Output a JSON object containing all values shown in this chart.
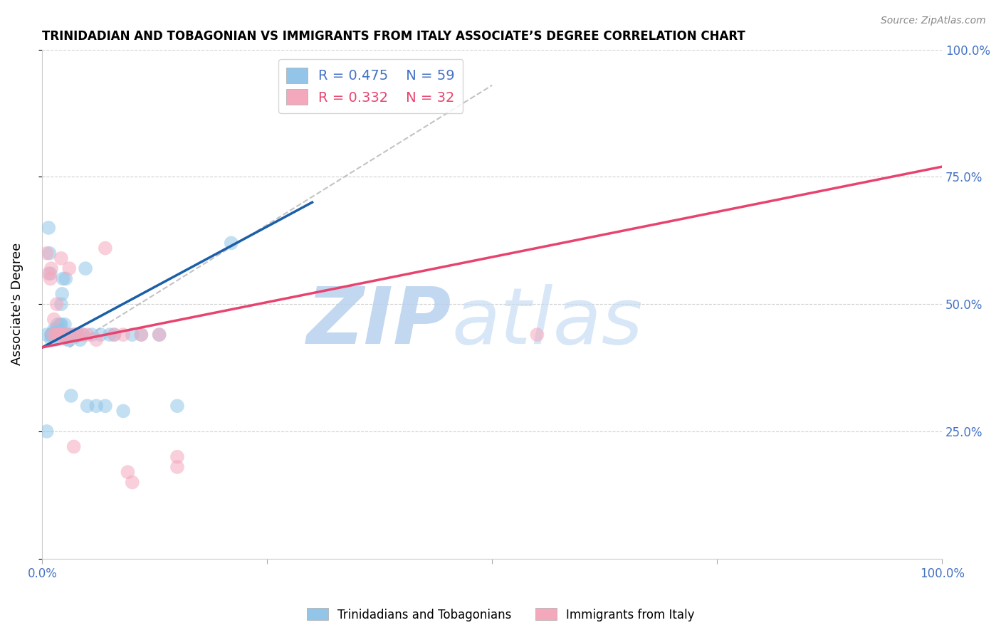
{
  "title": "TRINIDADIAN AND TOBAGONIAN VS IMMIGRANTS FROM ITALY ASSOCIATE’S DEGREE CORRELATION CHART",
  "source_text": "Source: ZipAtlas.com",
  "ylabel": "Associate's Degree",
  "r_blue": 0.475,
  "n_blue": 59,
  "r_pink": 0.332,
  "n_pink": 32,
  "blue_scatter_color": "#92c5e8",
  "pink_scatter_color": "#f4a8bc",
  "blue_line_color": "#1a5fa8",
  "pink_line_color": "#e8436e",
  "axis_label_color": "#4472c4",
  "watermark_color": "#cfe0f5",
  "blue_line_x0": 0.0,
  "blue_line_y0": 0.415,
  "blue_line_x1": 0.3,
  "blue_line_y1": 0.7,
  "pink_line_x0": 0.0,
  "pink_line_y0": 0.415,
  "pink_line_x1": 1.0,
  "pink_line_y1": 0.77,
  "dash_line_x0": 0.03,
  "dash_line_y0": 0.415,
  "dash_line_x1": 0.5,
  "dash_line_y1": 0.93,
  "blue_points_x": [
    0.005,
    0.007,
    0.008,
    0.009,
    0.01,
    0.01,
    0.01,
    0.011,
    0.012,
    0.013,
    0.013,
    0.014,
    0.015,
    0.015,
    0.015,
    0.016,
    0.017,
    0.017,
    0.018,
    0.018,
    0.019,
    0.019,
    0.02,
    0.02,
    0.021,
    0.021,
    0.022,
    0.022,
    0.023,
    0.023,
    0.024,
    0.025,
    0.025,
    0.026,
    0.027,
    0.028,
    0.03,
    0.03,
    0.032,
    0.035,
    0.038,
    0.04,
    0.042,
    0.045,
    0.048,
    0.05,
    0.055,
    0.06,
    0.065,
    0.07,
    0.075,
    0.08,
    0.09,
    0.1,
    0.11,
    0.13,
    0.15,
    0.21,
    0.005
  ],
  "blue_points_y": [
    0.44,
    0.65,
    0.6,
    0.56,
    0.44,
    0.44,
    0.43,
    0.44,
    0.44,
    0.44,
    0.45,
    0.44,
    0.43,
    0.44,
    0.45,
    0.44,
    0.44,
    0.46,
    0.44,
    0.45,
    0.44,
    0.44,
    0.44,
    0.46,
    0.46,
    0.5,
    0.52,
    0.44,
    0.55,
    0.44,
    0.44,
    0.44,
    0.46,
    0.55,
    0.44,
    0.43,
    0.43,
    0.44,
    0.32,
    0.44,
    0.44,
    0.44,
    0.43,
    0.44,
    0.57,
    0.3,
    0.44,
    0.3,
    0.44,
    0.3,
    0.44,
    0.44,
    0.29,
    0.44,
    0.44,
    0.44,
    0.3,
    0.62,
    0.25
  ],
  "pink_points_x": [
    0.005,
    0.007,
    0.009,
    0.01,
    0.012,
    0.013,
    0.015,
    0.016,
    0.018,
    0.019,
    0.02,
    0.021,
    0.022,
    0.025,
    0.028,
    0.03,
    0.035,
    0.035,
    0.04,
    0.045,
    0.05,
    0.06,
    0.07,
    0.08,
    0.09,
    0.095,
    0.1,
    0.11,
    0.13,
    0.15,
    0.15,
    0.55
  ],
  "pink_points_y": [
    0.6,
    0.56,
    0.55,
    0.57,
    0.44,
    0.47,
    0.44,
    0.5,
    0.44,
    0.44,
    0.44,
    0.59,
    0.44,
    0.44,
    0.44,
    0.57,
    0.44,
    0.22,
    0.44,
    0.44,
    0.44,
    0.43,
    0.61,
    0.44,
    0.44,
    0.17,
    0.15,
    0.44,
    0.44,
    0.2,
    0.18,
    0.44
  ],
  "xmin": 0.0,
  "xmax": 1.0,
  "ymin": 0.0,
  "ymax": 1.0,
  "ytick_pos": [
    0.0,
    0.25,
    0.5,
    0.75,
    1.0
  ],
  "ytick_labels_right": [
    "",
    "25.0%",
    "50.0%",
    "75.0%",
    "100.0%"
  ],
  "xtick_pos": [
    0.0,
    0.25,
    0.5,
    0.75,
    1.0
  ],
  "xtick_labels": [
    "0.0%",
    "",
    "",
    "",
    "100.0%"
  ]
}
